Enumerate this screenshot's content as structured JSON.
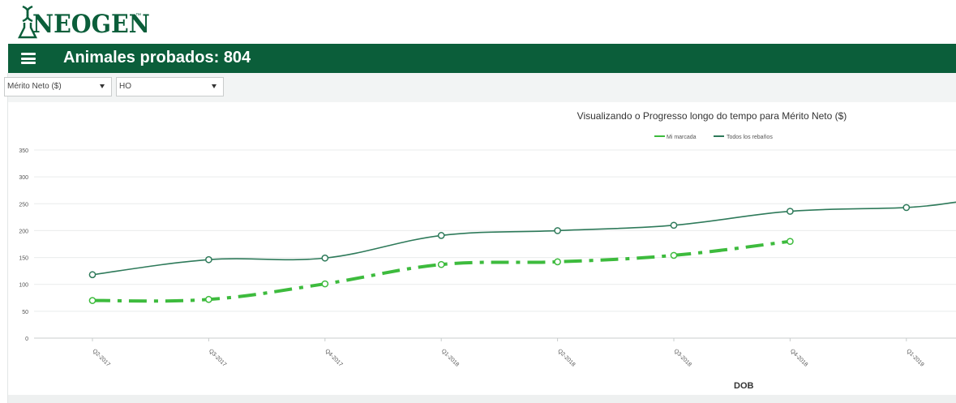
{
  "brand": {
    "name": "NEOGEN",
    "tm": "™"
  },
  "header": {
    "title": "Animales probados: 804",
    "menu_icon": "hamburger-menu-icon"
  },
  "filters": {
    "trait": {
      "selected": "Mérito Neto ($)"
    },
    "breed": {
      "selected": "HO"
    }
  },
  "colors": {
    "brand": "#0b5e3a",
    "mi_marcada": "#3dbb3d",
    "todos": "#2e7a5a"
  },
  "chart_data": {
    "type": "line",
    "title": "Visualizando o Progresso longo do tempo para Mérito Neto ($)",
    "xlabel": "DOB",
    "ylabel": "",
    "categories": [
      "Q2-2017",
      "Q3-2017",
      "Q4-2017",
      "Q1-2018",
      "Q2-2018",
      "Q3-2018",
      "Q4-2018",
      "Q1-2019"
    ],
    "ylim": [
      0,
      350
    ],
    "yticks": [
      0,
      50,
      100,
      150,
      200,
      250,
      300,
      350
    ],
    "grid": true,
    "legend": "top-right",
    "series": [
      {
        "name": "Mi marcada",
        "style": "dash-dot",
        "values": [
          70,
          72,
          101,
          137,
          142,
          154,
          180,
          null
        ]
      },
      {
        "name": "Todos los rebaños",
        "style": "solid",
        "values": [
          118,
          146,
          149,
          191,
          200,
          210,
          236,
          243
        ],
        "continues_to": 253
      }
    ]
  }
}
